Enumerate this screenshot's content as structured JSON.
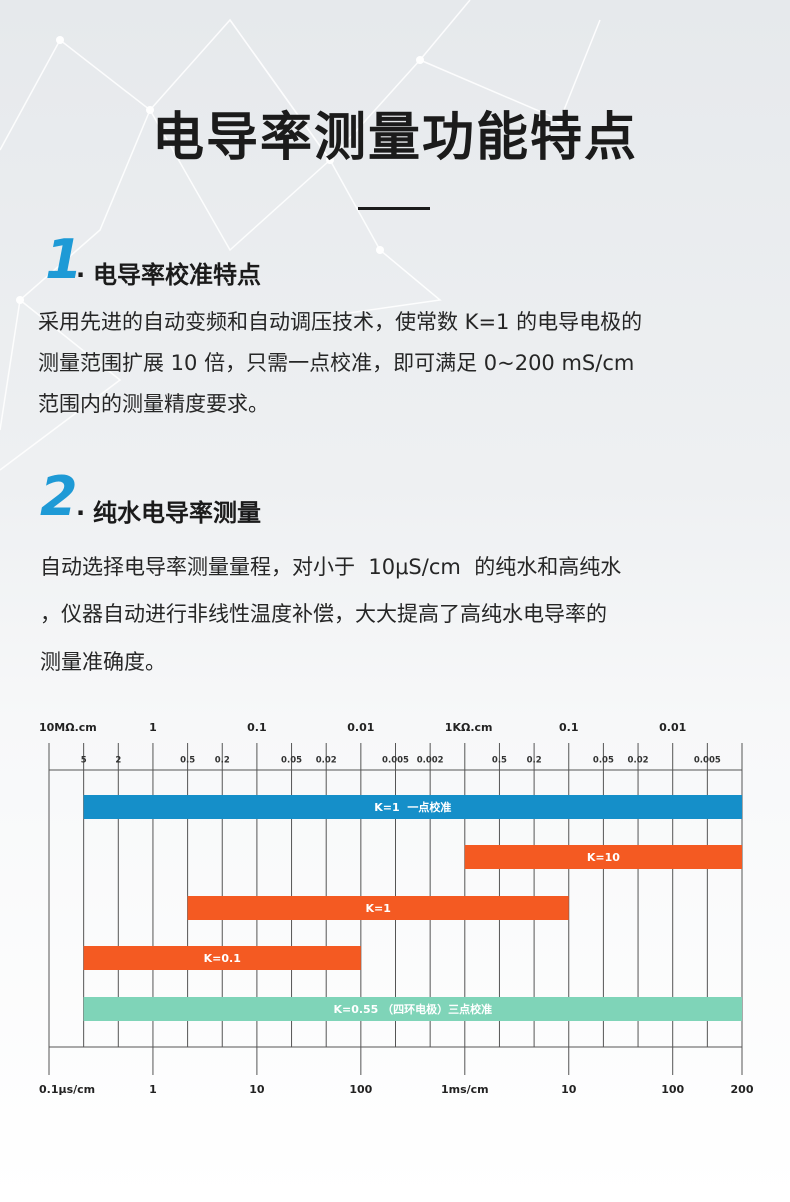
{
  "header": {
    "title": "电导率测量功能特点"
  },
  "sections": [
    {
      "number": "1",
      "title": "电导率校准特点",
      "lines": [
        "采用先进的自动变频和自动调压技术，使常数 K=1 的电导电极的",
        "测量范围扩展 10 倍，只需一点校准，即可满足 0~200 mS/cm",
        "范围内的测量精度要求。"
      ]
    },
    {
      "number": "2",
      "title": "纯水电导率测量",
      "lines": [
        "自动选择电导率测量量程，对小于  10μS/cm  的纯水和高纯水",
        "，仪器自动进行非线性温度补偿，大大提高了高纯水电导率的",
        "测量准确度。"
      ]
    }
  ],
  "range_chart": {
    "top_labels": [
      "10MΩ.cm",
      null,
      null,
      "1",
      null,
      null,
      "0.1",
      null,
      null,
      "0.01",
      null,
      null,
      "1KΩ.cm",
      null,
      null,
      "0.1",
      null,
      null,
      "0.01",
      null,
      null
    ],
    "sub_labels": [
      null,
      "5",
      "2",
      null,
      "0.5",
      "0.2",
      null,
      "0.05",
      "0.02",
      null,
      "0.005",
      "0.002",
      null,
      "0.5",
      "0.2",
      null,
      "0.05",
      "0.02",
      null,
      "0.005",
      null
    ],
    "bottom_labels": [
      "0.1μs/cm",
      null,
      null,
      "1",
      null,
      null,
      "10",
      null,
      null,
      "100",
      null,
      null,
      "1ms/cm",
      null,
      null,
      "10",
      null,
      null,
      "100",
      null,
      "200"
    ],
    "bars": [
      "K=1  一点校准",
      "K=10",
      "K=1",
      "K=0.1",
      "K=0.55 （四环电极）三点校准"
    ]
  }
}
